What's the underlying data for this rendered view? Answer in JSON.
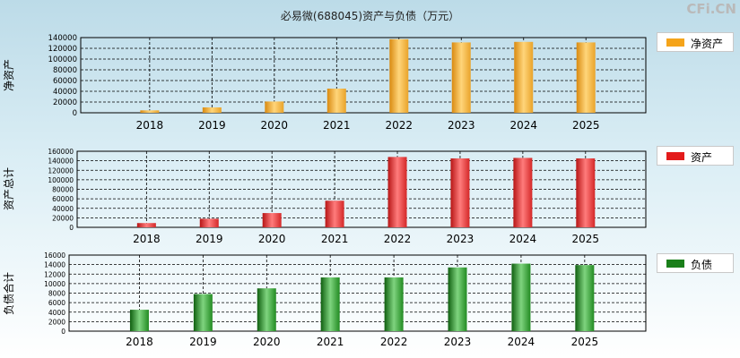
{
  "title": "必易微(688045)资产与负债（万元）",
  "brand": "CFi.CN",
  "colors": {
    "net_assets": "#f5a41a",
    "total_assets": "#e31b1b",
    "liabilities": "#1a7f1a"
  },
  "chart_data": [
    {
      "type": "bar",
      "ylabel": "净资产",
      "legend": "净资产",
      "categories": [
        "2018",
        "2019",
        "2020",
        "2021",
        "2022",
        "2023",
        "2024",
        "2025"
      ],
      "values": [
        4500,
        10000,
        21000,
        45000,
        137000,
        131000,
        132000,
        131000
      ],
      "ylim": [
        0,
        140000
      ],
      "yticks": [
        0,
        20000,
        40000,
        60000,
        80000,
        100000,
        120000,
        140000
      ],
      "ytick_labels": [
        "0",
        "20000",
        "40000",
        "60000",
        "80000",
        "100000",
        "120000",
        "140000"
      ],
      "grid": true,
      "legend_position": "right"
    },
    {
      "type": "bar",
      "ylabel": "资产总计",
      "legend": "资产",
      "categories": [
        "2018",
        "2019",
        "2020",
        "2021",
        "2022",
        "2023",
        "2024",
        "2025"
      ],
      "values": [
        9000,
        18000,
        30000,
        56000,
        148000,
        145000,
        146000,
        145000
      ],
      "ylim": [
        0,
        160000
      ],
      "yticks": [
        0,
        20000,
        40000,
        60000,
        80000,
        100000,
        120000,
        140000,
        160000
      ],
      "ytick_labels": [
        "0",
        "20000",
        "40000",
        "60000",
        "80000",
        "100000",
        "120000",
        "140000",
        "160000"
      ],
      "grid": true,
      "legend_position": "right"
    },
    {
      "type": "bar",
      "ylabel": "负债合计",
      "legend": "负债",
      "categories": [
        "2018",
        "2019",
        "2020",
        "2021",
        "2022",
        "2023",
        "2024",
        "2025"
      ],
      "values": [
        4500,
        7800,
        9000,
        11300,
        11300,
        13400,
        14200,
        13900
      ],
      "ylim": [
        0,
        16000
      ],
      "yticks": [
        0,
        2000,
        4000,
        6000,
        8000,
        10000,
        12000,
        14000,
        16000
      ],
      "ytick_labels": [
        "0",
        "2000",
        "4000",
        "6000",
        "8000",
        "10000",
        "12000",
        "14000",
        "16000"
      ],
      "grid": true,
      "legend_position": "right"
    }
  ]
}
